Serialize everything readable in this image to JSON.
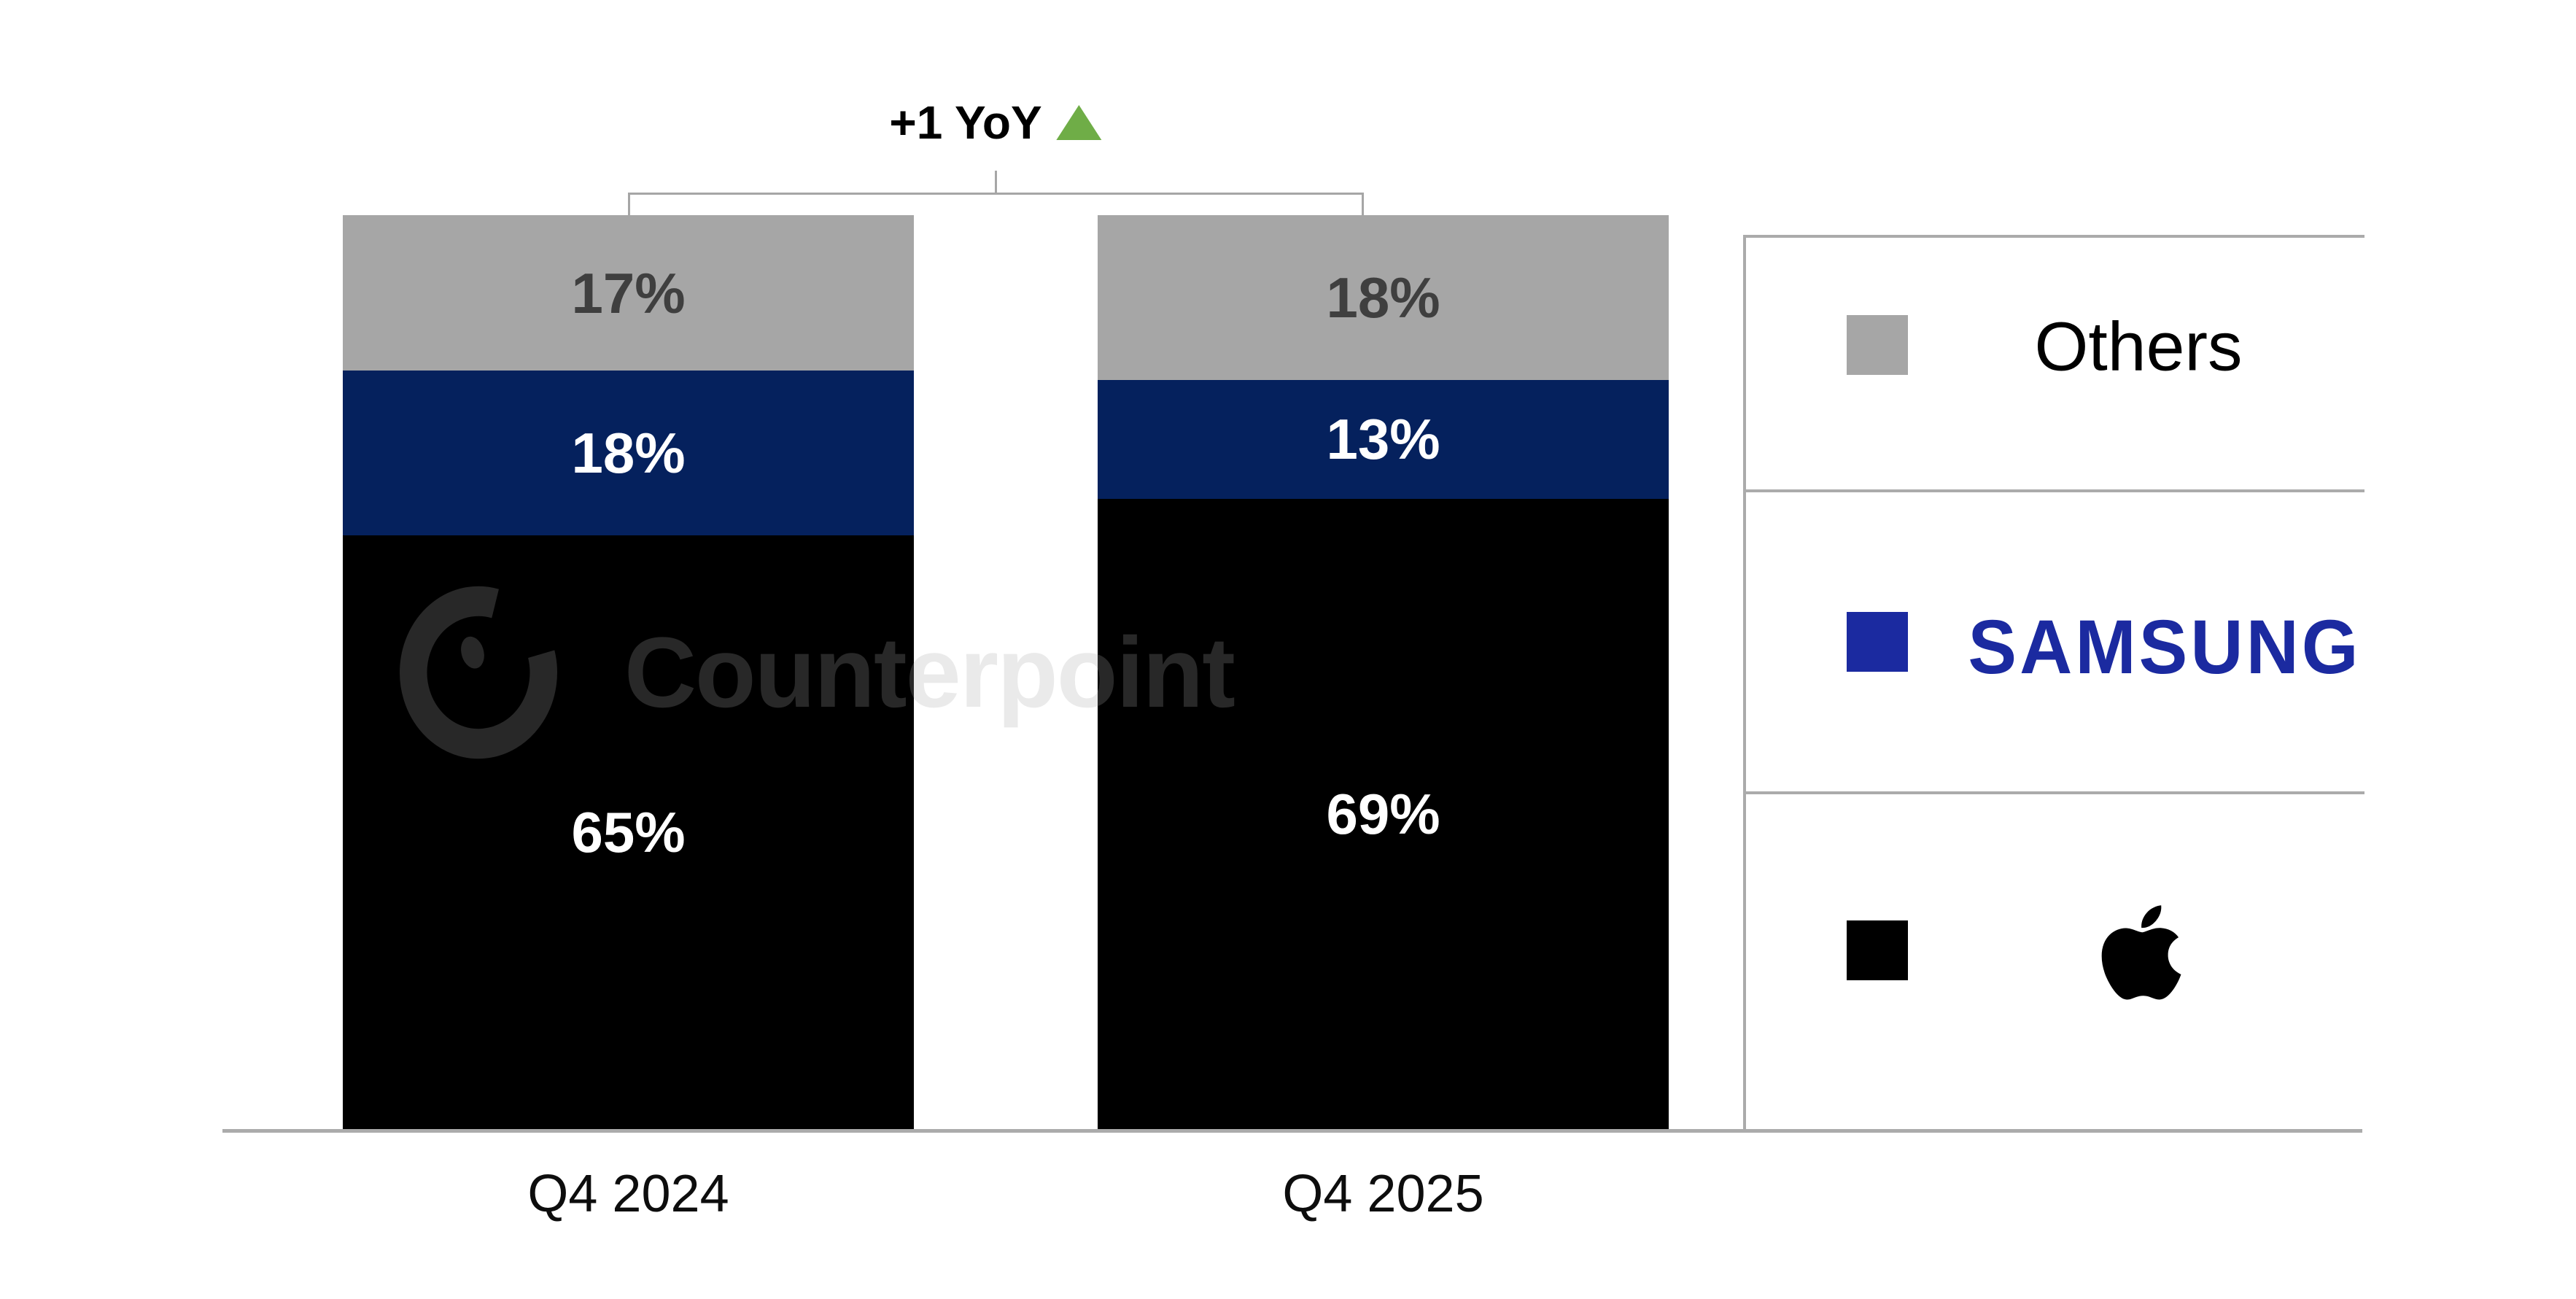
{
  "annotation": {
    "text": "+1 YoY",
    "direction": "up",
    "triangle_color": "#6fad47"
  },
  "watermark": {
    "text": "Counterpoint"
  },
  "x_axis": {
    "labels": [
      "Q4 2024",
      "Q4 2025"
    ]
  },
  "legend": {
    "position": "right",
    "items": [
      {
        "name": "Others",
        "label": "Others",
        "swatch_color": "#a6a6a6"
      },
      {
        "name": "Samsung",
        "label": "SAMSUNG",
        "swatch_color": "#1b2aa0",
        "text_color": "#1b2aa0"
      },
      {
        "name": "Apple",
        "label": "Apple logo",
        "swatch_color": "#000000"
      }
    ]
  },
  "chart_data": {
    "type": "bar",
    "stacked": true,
    "categories": [
      "Q4 2024",
      "Q4 2025"
    ],
    "stack_order": "top-to-bottom",
    "series": [
      {
        "name": "Others",
        "color": "#a6a6a6",
        "label_color": "#3f3f3f",
        "values": [
          17,
          18
        ]
      },
      {
        "name": "Samsung",
        "color": "#05215d",
        "label_color": "#ffffff",
        "values": [
          18,
          13
        ]
      },
      {
        "name": "Apple",
        "color": "#000000",
        "label_color": "#ffffff",
        "values": [
          65,
          69
        ]
      }
    ],
    "value_suffix": "%",
    "ylim": [
      0,
      100
    ],
    "grid": false,
    "title": "",
    "xlabel": "",
    "ylabel": "",
    "legend_position": "right",
    "annotations": [
      "+1 YoY"
    ]
  }
}
